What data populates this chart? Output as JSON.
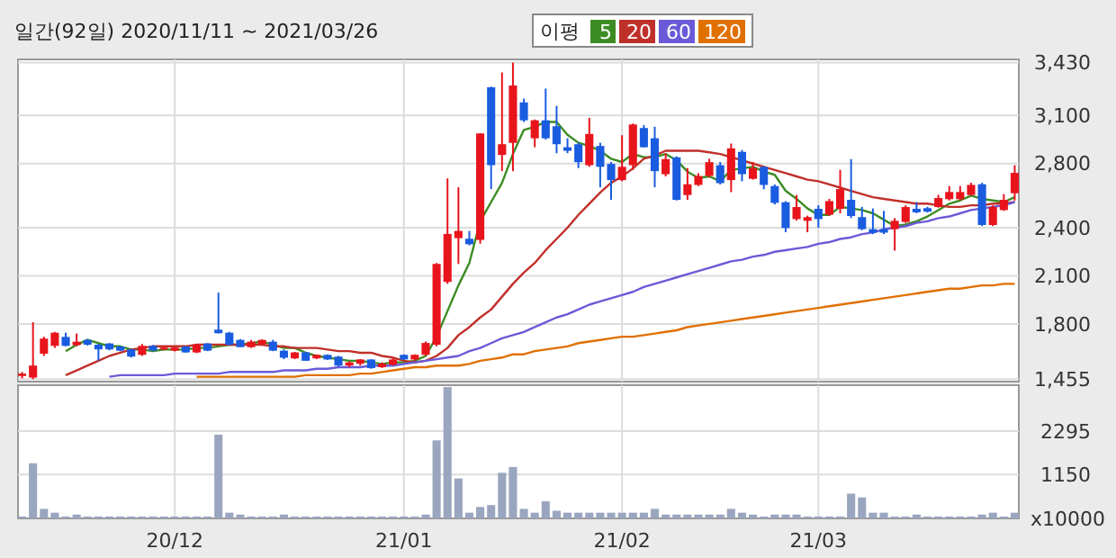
{
  "chart_data": [
    {
      "type": "candlestick",
      "title": "일간(92일) 2020/11/11 ~ 2021/03/26",
      "legend_title": "이평",
      "legend": "top",
      "grid": true,
      "tick_labels": "y",
      "categories": [
        null,
        null,
        null,
        null,
        null,
        null,
        null,
        null,
        null,
        null,
        null,
        null,
        null,
        null,
        null,
        null,
        null,
        null,
        null,
        null,
        null,
        null,
        null,
        null,
        null,
        null,
        null,
        null,
        null,
        null,
        null,
        null,
        null,
        null,
        null,
        null,
        null,
        null,
        null,
        null,
        null,
        null,
        null,
        null,
        null,
        null,
        null,
        null,
        null,
        null,
        null,
        null,
        null,
        null,
        null,
        null,
        null,
        null,
        null,
        null,
        null,
        null,
        null,
        null,
        null,
        null,
        null,
        null,
        null,
        null,
        null,
        null,
        null,
        null,
        null,
        null,
        null,
        null,
        null,
        null,
        null,
        null,
        null,
        null,
        null,
        null,
        null,
        null,
        null,
        null,
        null,
        null
      ],
      "ylim": [
        1440,
        3450
      ],
      "yticks": [
        {
          "value": 1455,
          "label": "1,455"
        },
        {
          "value": 1800,
          "label": "1,800"
        },
        {
          "value": 2100,
          "label": "2,100"
        },
        {
          "value": 2400,
          "label": "2,400"
        },
        {
          "value": 2800,
          "label": "2,800"
        },
        {
          "value": 3100,
          "label": "3,100"
        },
        {
          "value": 3430,
          "label": "3,430"
        }
      ],
      "ohlc": [
        [
          1475,
          1500,
          1460,
          1490
        ],
        [
          1465,
          1810,
          1455,
          1540
        ],
        [
          1614,
          1720,
          1600,
          1708
        ],
        [
          1663,
          1750,
          1650,
          1745
        ],
        [
          1719,
          1745,
          1660,
          1663
        ],
        [
          1667,
          1740,
          1660,
          1689
        ],
        [
          1700,
          1705,
          1665,
          1670
        ],
        [
          1670,
          1675,
          1570,
          1641
        ],
        [
          1678,
          1680,
          1635,
          1641
        ],
        [
          1659,
          1662,
          1630,
          1633
        ],
        [
          1641,
          1645,
          1590,
          1596
        ],
        [
          1607,
          1675,
          1600,
          1663
        ],
        [
          1663,
          1668,
          1630,
          1633
        ],
        [
          1641,
          1660,
          1635,
          1652
        ],
        [
          1633,
          1655,
          1628,
          1652
        ],
        [
          1659,
          1662,
          1620,
          1622
        ],
        [
          1622,
          1675,
          1618,
          1670
        ],
        [
          1678,
          1680,
          1630,
          1633
        ],
        [
          1764,
          1995,
          1740,
          1742
        ],
        [
          1745,
          1750,
          1665,
          1670
        ],
        [
          1700,
          1705,
          1655,
          1655
        ],
        [
          1655,
          1700,
          1650,
          1689
        ],
        [
          1674,
          1705,
          1670,
          1700
        ],
        [
          1689,
          1700,
          1630,
          1633
        ],
        [
          1633,
          1640,
          1580,
          1589
        ],
        [
          1585,
          1625,
          1580,
          1622
        ],
        [
          1622,
          1625,
          1570,
          1570
        ],
        [
          1585,
          1610,
          1580,
          1607
        ],
        [
          1607,
          1610,
          1575,
          1578
        ],
        [
          1596,
          1600,
          1533,
          1540
        ],
        [
          1540,
          1565,
          1530,
          1560
        ],
        [
          1552,
          1580,
          1540,
          1578
        ],
        [
          1578,
          1580,
          1520,
          1524
        ],
        [
          1530,
          1560,
          1525,
          1552
        ],
        [
          1545,
          1585,
          1540,
          1578
        ],
        [
          1607,
          1610,
          1575,
          1578
        ],
        [
          1578,
          1610,
          1570,
          1607
        ],
        [
          1607,
          1690,
          1600,
          1681
        ],
        [
          1670,
          2180,
          1660,
          2174
        ],
        [
          2062,
          2708,
          2050,
          2361
        ],
        [
          2335,
          2652,
          2174,
          2380
        ],
        [
          2331,
          2380,
          2290,
          2297
        ],
        [
          2324,
          2990,
          2300,
          2988
        ],
        [
          3276,
          3280,
          2641,
          2790
        ],
        [
          2854,
          3369,
          2753,
          2921
        ],
        [
          2929,
          3430,
          2753,
          3287
        ],
        [
          3182,
          3205,
          3060,
          3070
        ],
        [
          2958,
          3075,
          2902,
          3070
        ],
        [
          3070,
          3268,
          2950,
          2958
        ],
        [
          3033,
          3160,
          2865,
          2921
        ],
        [
          2902,
          2958,
          2865,
          2880
        ],
        [
          2921,
          2930,
          2772,
          2809
        ],
        [
          2790,
          3085,
          2780,
          2985
        ],
        [
          2910,
          2930,
          2652,
          2780
        ],
        [
          2798,
          2810,
          2574,
          2697
        ],
        [
          2697,
          2977,
          2690,
          2780
        ],
        [
          2790,
          3050,
          2760,
          3044
        ],
        [
          3022,
          3040,
          2900,
          2902
        ],
        [
          2958,
          3030,
          2652,
          2753
        ],
        [
          2734,
          2865,
          2720,
          2828
        ],
        [
          2839,
          2845,
          2570,
          2574
        ],
        [
          2604,
          2772,
          2574,
          2671
        ],
        [
          2667,
          2740,
          2660,
          2723
        ],
        [
          2723,
          2830,
          2715,
          2809
        ],
        [
          2790,
          2810,
          2670,
          2678
        ],
        [
          2697,
          2925,
          2622,
          2895
        ],
        [
          2873,
          2885,
          2690,
          2734
        ],
        [
          2705,
          2810,
          2700,
          2772
        ],
        [
          2779,
          2785,
          2640,
          2667
        ],
        [
          2660,
          2670,
          2545,
          2555
        ],
        [
          2559,
          2565,
          2372,
          2398
        ],
        [
          2454,
          2604,
          2445,
          2529
        ],
        [
          2443,
          2475,
          2372,
          2466
        ],
        [
          2518,
          2540,
          2400,
          2454
        ],
        [
          2481,
          2580,
          2475,
          2566
        ],
        [
          2518,
          2761,
          2490,
          2641
        ],
        [
          2574,
          2828,
          2460,
          2473
        ],
        [
          2466,
          2530,
          2385,
          2391
        ],
        [
          2391,
          2520,
          2360,
          2369
        ],
        [
          2391,
          2505,
          2360,
          2369
        ],
        [
          2391,
          2460,
          2257,
          2443
        ],
        [
          2436,
          2540,
          2430,
          2529
        ],
        [
          2518,
          2560,
          2490,
          2496
        ],
        [
          2522,
          2530,
          2495,
          2500
        ],
        [
          2529,
          2605,
          2525,
          2585
        ],
        [
          2578,
          2660,
          2570,
          2623
        ],
        [
          2578,
          2660,
          2570,
          2623
        ],
        [
          2604,
          2680,
          2600,
          2667
        ],
        [
          2671,
          2680,
          2410,
          2417
        ],
        [
          2417,
          2540,
          2410,
          2529
        ],
        [
          2510,
          2610,
          2505,
          2574
        ],
        [
          2615,
          2790,
          2570,
          2742
        ]
      ],
      "series": [
        {
          "name": "5",
          "type": "line",
          "color": "#3c8c23",
          "values": [
            null,
            null,
            null,
            null,
            1630,
            1670,
            1700,
            1680,
            1660,
            1660,
            1640,
            1640,
            1630,
            1640,
            1640,
            1640,
            1650,
            1650,
            1660,
            1670,
            1670,
            1680,
            1690,
            1670,
            1650,
            1650,
            1620,
            1600,
            1590,
            1580,
            1570,
            1570,
            1560,
            1550,
            1560,
            1560,
            1570,
            1600,
            1720,
            1880,
            2040,
            2180,
            2440,
            2560,
            2680,
            2860,
            3010,
            3030,
            3060,
            3060,
            2980,
            2930,
            2910,
            2880,
            2830,
            2810,
            2860,
            2840,
            2840,
            2860,
            2820,
            2750,
            2710,
            2720,
            2690,
            2760,
            2770,
            2780,
            2750,
            2730,
            2630,
            2580,
            2520,
            2480,
            2480,
            2530,
            2520,
            2510,
            2490,
            2450,
            2410,
            2420,
            2440,
            2470,
            2510,
            2550,
            2570,
            2600,
            2580,
            2570,
            2560,
            2590
          ]
        },
        {
          "name": "20",
          "type": "line",
          "color": "#c0302a",
          "values": [
            null,
            null,
            null,
            null,
            1480,
            1510,
            1540,
            1570,
            1600,
            1620,
            1640,
            1650,
            1660,
            1660,
            1660,
            1660,
            1670,
            1670,
            1670,
            1670,
            1670,
            1670,
            1670,
            1660,
            1660,
            1650,
            1650,
            1650,
            1640,
            1630,
            1630,
            1620,
            1620,
            1600,
            1590,
            1570,
            1560,
            1570,
            1600,
            1650,
            1730,
            1780,
            1840,
            1890,
            1970,
            2050,
            2120,
            2180,
            2260,
            2330,
            2400,
            2480,
            2550,
            2620,
            2680,
            2720,
            2770,
            2830,
            2850,
            2880,
            2880,
            2880,
            2880,
            2870,
            2860,
            2840,
            2820,
            2800,
            2780,
            2760,
            2740,
            2720,
            2700,
            2690,
            2670,
            2650,
            2630,
            2610,
            2590,
            2580,
            2570,
            2560,
            2550,
            2550,
            2540,
            2530,
            2530,
            2540,
            2540,
            2550,
            2550,
            2560
          ]
        },
        {
          "name": "60",
          "type": "line",
          "color": "#6a5ad8",
          "values": [
            null,
            null,
            null,
            null,
            null,
            null,
            null,
            null,
            1470,
            1480,
            1480,
            1480,
            1480,
            1480,
            1490,
            1490,
            1490,
            1490,
            1490,
            1500,
            1500,
            1500,
            1500,
            1500,
            1510,
            1510,
            1510,
            1520,
            1520,
            1530,
            1530,
            1530,
            1540,
            1540,
            1540,
            1550,
            1560,
            1570,
            1580,
            1590,
            1600,
            1630,
            1650,
            1680,
            1710,
            1730,
            1750,
            1780,
            1810,
            1840,
            1860,
            1890,
            1920,
            1940,
            1960,
            1980,
            2000,
            2030,
            2050,
            2070,
            2090,
            2110,
            2130,
            2150,
            2170,
            2190,
            2200,
            2220,
            2230,
            2250,
            2260,
            2270,
            2280,
            2300,
            2310,
            2330,
            2340,
            2360,
            2370,
            2390,
            2400,
            2410,
            2430,
            2440,
            2460,
            2470,
            2490,
            2510,
            2520,
            2530,
            2540,
            2560
          ]
        },
        {
          "name": "120",
          "type": "line",
          "color": "#e07000",
          "values": [
            null,
            null,
            null,
            null,
            null,
            null,
            null,
            null,
            null,
            null,
            null,
            null,
            null,
            null,
            null,
            null,
            1470,
            1470,
            1470,
            1470,
            1470,
            1470,
            1470,
            1470,
            1470,
            1470,
            1480,
            1480,
            1480,
            1480,
            1480,
            1490,
            1490,
            1500,
            1510,
            1520,
            1530,
            1530,
            1540,
            1540,
            1540,
            1550,
            1570,
            1580,
            1590,
            1610,
            1610,
            1630,
            1640,
            1650,
            1660,
            1680,
            1690,
            1700,
            1710,
            1720,
            1720,
            1730,
            1740,
            1750,
            1760,
            1780,
            1790,
            1800,
            1810,
            1820,
            1830,
            1840,
            1850,
            1860,
            1870,
            1880,
            1890,
            1900,
            1910,
            1920,
            1930,
            1940,
            1950,
            1960,
            1970,
            1980,
            1990,
            2000,
            2010,
            2020,
            2020,
            2030,
            2040,
            2040,
            2050,
            2050
          ]
        }
      ]
    },
    {
      "type": "bar",
      "ylabel": "x10000",
      "grid": true,
      "color": "#9aa5bf",
      "categories": [
        null,
        null,
        null,
        null,
        null,
        null,
        null,
        null,
        null,
        null,
        null,
        null,
        null,
        null,
        "20/12",
        null,
        null,
        null,
        null,
        null,
        null,
        null,
        null,
        null,
        null,
        null,
        null,
        null,
        null,
        null,
        null,
        null,
        null,
        null,
        null,
        "21/01",
        null,
        null,
        null,
        null,
        null,
        null,
        null,
        null,
        null,
        null,
        null,
        null,
        null,
        null,
        null,
        null,
        null,
        null,
        null,
        "21/02",
        null,
        null,
        null,
        null,
        null,
        null,
        null,
        null,
        null,
        null,
        null,
        null,
        null,
        null,
        null,
        null,
        null,
        "21/03",
        null,
        null,
        null,
        null,
        null,
        null,
        null,
        null,
        null,
        null,
        null,
        null,
        null,
        null,
        null,
        null,
        null,
        null
      ],
      "ylim": [
        0,
        3500
      ],
      "yticks": [
        1150,
        2295
      ],
      "values": [
        50,
        1450,
        250,
        150,
        50,
        100,
        50,
        50,
        50,
        50,
        50,
        50,
        50,
        50,
        50,
        50,
        50,
        50,
        2200,
        150,
        100,
        50,
        50,
        50,
        100,
        50,
        50,
        50,
        50,
        50,
        50,
        50,
        50,
        50,
        50,
        50,
        50,
        100,
        2050,
        3450,
        1050,
        150,
        300,
        350,
        1200,
        1350,
        250,
        150,
        450,
        200,
        150,
        150,
        150,
        150,
        150,
        150,
        150,
        150,
        250,
        100,
        100,
        100,
        100,
        100,
        100,
        250,
        150,
        100,
        50,
        100,
        100,
        100,
        50,
        50,
        50,
        50,
        650,
        550,
        150,
        150,
        50,
        50,
        100,
        50,
        50,
        50,
        50,
        50,
        100,
        150,
        50,
        150
      ]
    }
  ]
}
